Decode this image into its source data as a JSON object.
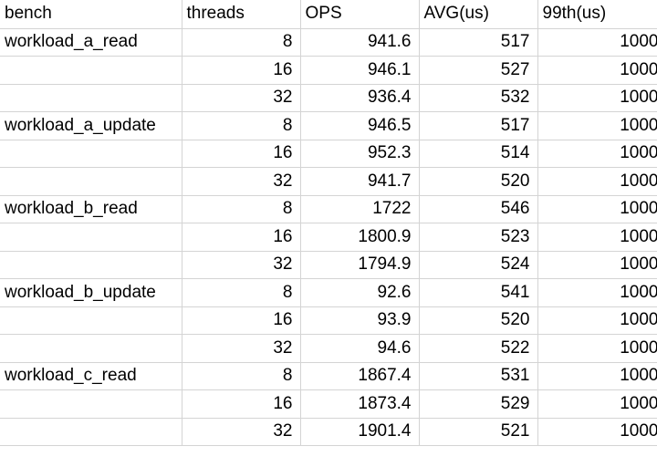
{
  "table": {
    "headers": [
      "bench",
      "threads",
      "OPS",
      "AVG(us)",
      "99th(us)"
    ],
    "rows": [
      [
        "workload_a_read",
        "8",
        "941.6",
        "517",
        "1000"
      ],
      [
        "",
        "16",
        "946.1",
        "527",
        "1000"
      ],
      [
        "",
        "32",
        "936.4",
        "532",
        "1000"
      ],
      [
        "workload_a_update",
        "8",
        "946.5",
        "517",
        "1000"
      ],
      [
        "",
        "16",
        "952.3",
        "514",
        "1000"
      ],
      [
        "",
        "32",
        "941.7",
        "520",
        "1000"
      ],
      [
        "workload_b_read",
        "8",
        "1722",
        "546",
        "1000"
      ],
      [
        "",
        "16",
        "1800.9",
        "523",
        "1000"
      ],
      [
        "",
        "32",
        "1794.9",
        "524",
        "1000"
      ],
      [
        "workload_b_update",
        "8",
        "92.6",
        "541",
        "1000"
      ],
      [
        "",
        "16",
        "93.9",
        "520",
        "1000"
      ],
      [
        "",
        "32",
        "94.6",
        "522",
        "1000"
      ],
      [
        "workload_c_read",
        "8",
        "1867.4",
        "531",
        "1000"
      ],
      [
        "",
        "16",
        "1873.4",
        "529",
        "1000"
      ],
      [
        "",
        "32",
        "1901.4",
        "521",
        "1000"
      ]
    ]
  }
}
